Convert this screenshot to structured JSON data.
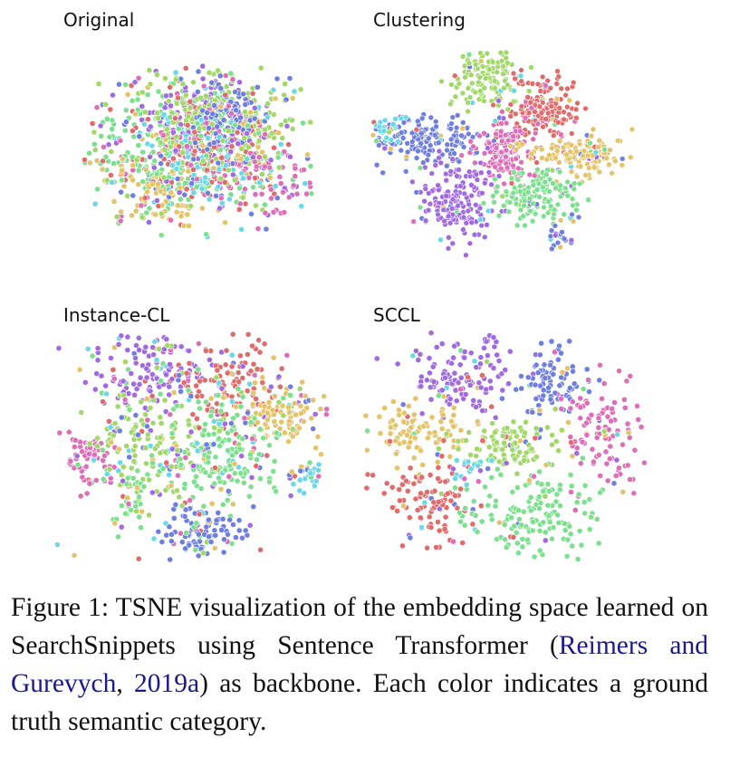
{
  "figure": {
    "panels": [
      {
        "title": "Original"
      },
      {
        "title": "Clustering"
      },
      {
        "title": "Instance-CL"
      },
      {
        "title": "SCCL"
      }
    ],
    "category_colors": [
      "#e06b6b",
      "#a2d86a",
      "#7de08e",
      "#6f7fe0",
      "#a06ae0",
      "#e3c46a",
      "#dd6fb8",
      "#6ad8e6"
    ],
    "caption": {
      "label": "Figure 1:",
      "text_before": "TSNE visualization of the embedding space learned on SearchSnippets using Sentence Transformer (",
      "citation_authors": "Reimers and Gurevych",
      "citation_sep": ", ",
      "citation_year": "2019a",
      "text_after": ") as backbone. Each color indicates a ground truth semantic category."
    }
  }
}
